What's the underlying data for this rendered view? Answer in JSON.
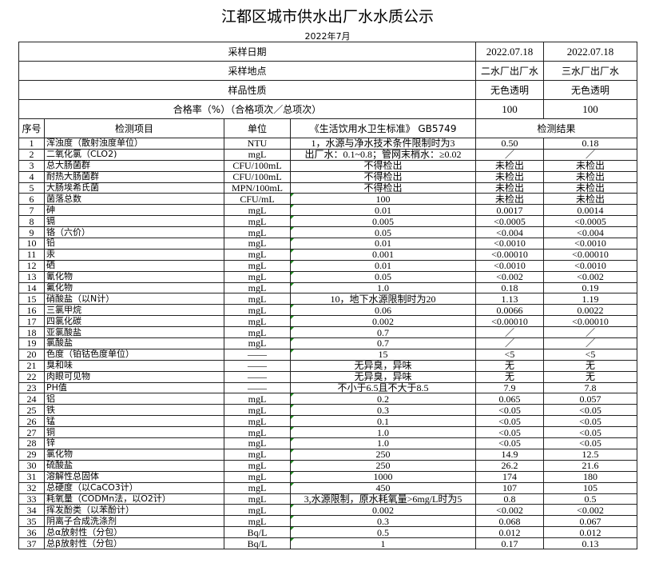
{
  "title": "江都区城市供水出厂水水质公示",
  "subtitle": "2022年7月",
  "meta": [
    {
      "label": "采样日期",
      "values": [
        "2022.07.18",
        "2022.07.18"
      ]
    },
    {
      "label": "采样地点",
      "values": [
        "二水厂出厂水",
        "三水厂出厂水"
      ]
    },
    {
      "label": "样品性质",
      "values": [
        "无色透明",
        "无色透明"
      ]
    },
    {
      "label": "合格率（%）（合格项次／总项次）",
      "values": [
        "100",
        "100"
      ]
    }
  ],
  "columns": {
    "no": "序号",
    "item": "检测项目",
    "unit": "单位",
    "standard": "《生活饮用水卫生标准》 GB5749",
    "result": "检测结果"
  },
  "rows": [
    [
      "1",
      "浑浊度（散射浊度单位）",
      "NTU",
      "1，水源与净水技术条件限制时为3",
      "0.50",
      "0.18"
    ],
    [
      "2",
      "二氧化氯（CLO2)",
      "mgL",
      "出厂水：0.1~0.8；管网末梢水：≥0.02",
      "／",
      "／"
    ],
    [
      "3",
      "总大肠菌群",
      "CFU/100mL",
      "不得检出",
      "未检出",
      "未检出"
    ],
    [
      "4",
      "耐热大肠菌群",
      "CFU/100mL",
      "不得检出",
      "未检出",
      "未检出"
    ],
    [
      "5",
      "大肠埃希氏菌",
      "MPN/100mL",
      "不得检出",
      "未检出",
      "未检出"
    ],
    [
      "6",
      "菌落总数",
      "CFU/mL",
      "100",
      "未检出",
      "未检出"
    ],
    [
      "7",
      "砷",
      "mgL",
      "0.01",
      "0.0017",
      "0.0014"
    ],
    [
      "8",
      "镉",
      "mgL",
      "0.005",
      "<0.0005",
      "<0.0005"
    ],
    [
      "9",
      "铬（六价）",
      "mgL",
      "0.05",
      "<0.004",
      "<0.004"
    ],
    [
      "10",
      "铅",
      "mgL",
      "0.01",
      "<0.0010",
      "<0.0010"
    ],
    [
      "11",
      "汞",
      "mgL",
      "0.001",
      "<0.00010",
      "<0.00010"
    ],
    [
      "12",
      "硒",
      "mgL",
      "0.01",
      "<0.0010",
      "<0.0010"
    ],
    [
      "13",
      "氰化物",
      "mgL",
      "0.05",
      "<0.002",
      "<0.002"
    ],
    [
      "14",
      "氟化物",
      "mgL",
      "1.0",
      "0.18",
      "0.19"
    ],
    [
      "15",
      "硝酸盐（以N计）",
      "mgL",
      "10，地下水源限制时为20",
      "1.13",
      "1.19"
    ],
    [
      "16",
      "三氯甲烷",
      "mgL",
      "0.06",
      "0.0066",
      "0.0022"
    ],
    [
      "17",
      "四氯化碳",
      "mgL",
      "0.002",
      "<0.00010",
      "<0.00010"
    ],
    [
      "18",
      "亚氯酸盐",
      "mgL",
      "0.7",
      "／",
      "／"
    ],
    [
      "19",
      "氯酸盐",
      "mgL",
      "0.7",
      "／",
      "／"
    ],
    [
      "20",
      "色度（铂钴色度单位）",
      "——",
      "15",
      "<5",
      "<5"
    ],
    [
      "21",
      "臭和味",
      "——",
      "无异臭，异味",
      "无",
      "无"
    ],
    [
      "22",
      "肉眼可见物",
      "——",
      "无异臭，异味",
      "无",
      "无"
    ],
    [
      "23",
      "PH值",
      "——",
      "不小于6.5且不大于8.5",
      "7.9",
      "7.8"
    ],
    [
      "24",
      "铝",
      "mgL",
      "0.2",
      "0.065",
      "0.057"
    ],
    [
      "25",
      "铁",
      "mgL",
      "0.3",
      "<0.05",
      "<0.05"
    ],
    [
      "26",
      "锰",
      "mgL",
      "0.1",
      "<0.05",
      "<0.05"
    ],
    [
      "27",
      "铜",
      "mgL",
      "1.0",
      "<0.05",
      "<0.05"
    ],
    [
      "28",
      "锌",
      "mgL",
      "1.0",
      "<0.05",
      "<0.05"
    ],
    [
      "29",
      "氯化物",
      "mgL",
      "250",
      "14.9",
      "12.5"
    ],
    [
      "30",
      "硫酸盐",
      "mgL",
      "250",
      "26.2",
      "21.6"
    ],
    [
      "31",
      "溶解性总固体",
      "mgL",
      "1000",
      "174",
      "180"
    ],
    [
      "32",
      "总硬度（以CaCO3计）",
      "mgL",
      "450",
      "107",
      "105"
    ],
    [
      "33",
      "耗氧量（CODMn法，以O2计）",
      "mgL",
      "3,水源限制，原水耗氧量>6mg/L时为5",
      "0.8",
      "0.5"
    ],
    [
      "34",
      "挥发酚类（以苯酚计）",
      "mgL",
      "0.002",
      "<0.002",
      "<0.002"
    ],
    [
      "35",
      "阴离子合成洗涤剂",
      "mgL",
      "0.3",
      "0.068",
      "0.067"
    ],
    [
      "36",
      "总α放射性（分包）",
      "Bq/L",
      "0.5",
      "0.012",
      "0.012"
    ],
    [
      "37",
      "总β放射性（分包）",
      "Bq/L",
      "1",
      "0.17",
      "0.13"
    ]
  ],
  "flagged_standard_rows": [
    6,
    7,
    8,
    9,
    10,
    11,
    12,
    13,
    14,
    16,
    17,
    18,
    19,
    20,
    24,
    25,
    26,
    27,
    28,
    29,
    30,
    31,
    32,
    34,
    35,
    36,
    37
  ],
  "flag_color": "#1a8a1a"
}
